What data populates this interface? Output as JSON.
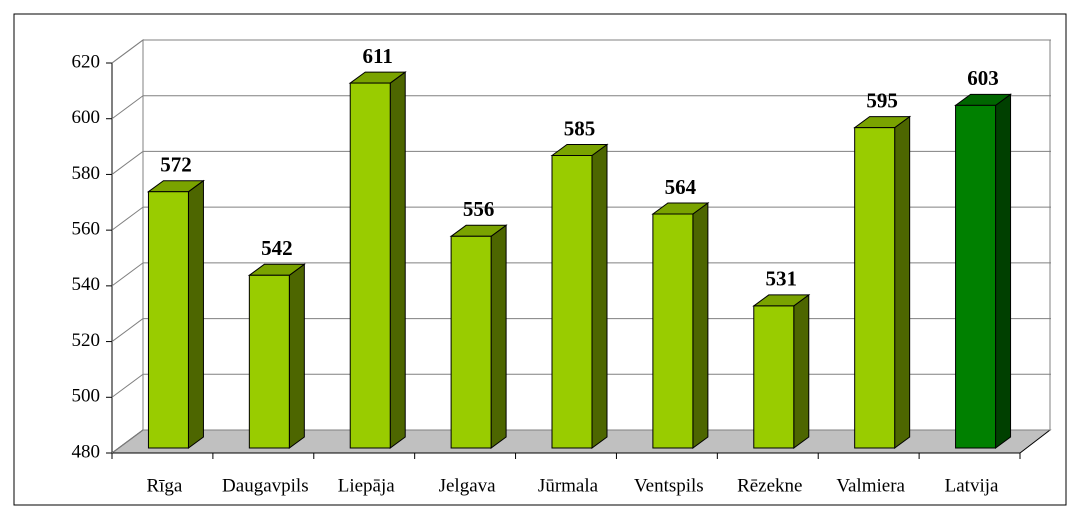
{
  "chart_data": {
    "type": "bar3d",
    "categories": [
      "Rīga",
      "Daugavpils",
      "Liepāja",
      "Jelgava",
      "Jūrmala",
      "Ventspils",
      "Rēzekne",
      "Valmiera",
      "Latvija"
    ],
    "values": [
      572,
      542,
      611,
      556,
      585,
      564,
      531,
      595,
      603
    ],
    "colors": [
      "#99cc00",
      "#99cc00",
      "#99cc00",
      "#99cc00",
      "#99cc00",
      "#99cc00",
      "#99cc00",
      "#99cc00",
      "#008000"
    ],
    "ylim": [
      480,
      620
    ],
    "yticks": [
      480,
      500,
      520,
      540,
      560,
      580,
      600,
      620
    ],
    "grid": true
  }
}
